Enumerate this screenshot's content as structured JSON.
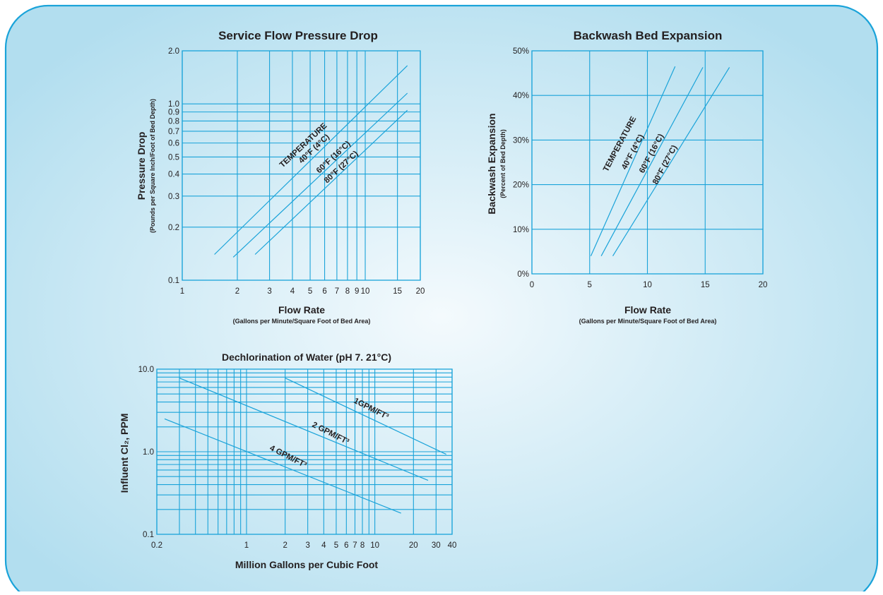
{
  "colors": {
    "panel_border": "#1aa3d9",
    "panel_center": "#f4fafd",
    "panel_edge": "#b2deef",
    "grid": "#1aa3d9",
    "text": "#231f20"
  },
  "chart_data": [
    {
      "type": "line",
      "title": "Service Flow Pressure Drop",
      "xlabel": "Flow Rate",
      "xlabel_sub": "(Gallons per Minute/Square Foot of Bed Area)",
      "ylabel": "Pressure Drop",
      "ylabel_sub": "(Pounds per Square Inch/Foot of Bed Depth)",
      "xscale": "log",
      "yscale": "log",
      "xlim": [
        1,
        20
      ],
      "ylim": [
        0.1,
        2.0
      ],
      "x_ticks": [
        {
          "v": 1,
          "label": "1"
        },
        {
          "v": 2,
          "label": "2"
        },
        {
          "v": 3,
          "label": "3"
        },
        {
          "v": 4,
          "label": "4"
        },
        {
          "v": 5,
          "label": "5"
        },
        {
          "v": 6,
          "label": "6"
        },
        {
          "v": 7,
          "label": "7"
        },
        {
          "v": 8,
          "label": "8"
        },
        {
          "v": 9,
          "label": "9"
        },
        {
          "v": 10,
          "label": "10"
        },
        {
          "v": 15,
          "label": "15"
        },
        {
          "v": 20,
          "label": "20"
        }
      ],
      "y_ticks": [
        {
          "v": 0.1,
          "label": "0.1"
        },
        {
          "v": 0.2,
          "label": "0.2"
        },
        {
          "v": 0.3,
          "label": "0.3"
        },
        {
          "v": 0.4,
          "label": "0.4"
        },
        {
          "v": 0.5,
          "label": "0.5"
        },
        {
          "v": 0.6,
          "label": "0.6"
        },
        {
          "v": 0.7,
          "label": "0.7"
        },
        {
          "v": 0.8,
          "label": "0.8"
        },
        {
          "v": 0.9,
          "label": "0.9"
        },
        {
          "v": 1.0,
          "label": "1.0"
        },
        {
          "v": 2.0,
          "label": "2.0"
        }
      ],
      "grid": true,
      "annotation": "TEMPERATURE",
      "series": [
        {
          "name": "40°F (4°C)",
          "x": [
            1.5,
            17
          ],
          "y": [
            0.14,
            1.65
          ]
        },
        {
          "name": "60°F (16°C)",
          "x": [
            1.9,
            17
          ],
          "y": [
            0.135,
            1.15
          ]
        },
        {
          "name": "80°F (27°C)",
          "x": [
            2.5,
            17
          ],
          "y": [
            0.14,
            0.92
          ]
        }
      ]
    },
    {
      "type": "line",
      "title": "Backwash Bed Expansion",
      "xlabel": "Flow Rate",
      "xlabel_sub": "(Gallons per Minute/Square Foot of Bed Area)",
      "ylabel": "Backwash Expansion",
      "ylabel_sub": "(Percent of Bed Depth)",
      "xscale": "linear",
      "yscale": "linear",
      "xlim": [
        0,
        20
      ],
      "ylim": [
        0,
        50
      ],
      "x_ticks": [
        {
          "v": 0,
          "label": "0"
        },
        {
          "v": 5,
          "label": "5"
        },
        {
          "v": 10,
          "label": "10"
        },
        {
          "v": 15,
          "label": "15"
        },
        {
          "v": 20,
          "label": "20"
        }
      ],
      "y_ticks": [
        {
          "v": 0,
          "label": "0%"
        },
        {
          "v": 10,
          "label": "10%"
        },
        {
          "v": 20,
          "label": "20%"
        },
        {
          "v": 30,
          "label": "30%"
        },
        {
          "v": 40,
          "label": "40%"
        },
        {
          "v": 50,
          "label": "50%"
        }
      ],
      "grid": true,
      "annotation": "TEMPERATURE",
      "series": [
        {
          "name": "40°F (4°C)",
          "x": [
            5.1,
            12.4
          ],
          "y": [
            4,
            46.5
          ]
        },
        {
          "name": "60°F (16°C)",
          "x": [
            6.0,
            14.8
          ],
          "y": [
            4,
            46.3
          ]
        },
        {
          "name": "80°F (27°C)",
          "x": [
            7.0,
            17.1
          ],
          "y": [
            4,
            46.3
          ]
        }
      ]
    },
    {
      "type": "line",
      "title": "Dechlorination of Water (pH 7. 21°C)",
      "xlabel": "Million Gallons per Cubic Foot",
      "ylabel": "Influent Cl₂, PPM",
      "xscale": "log",
      "yscale": "log",
      "xlim": [
        0.2,
        40
      ],
      "ylim": [
        0.1,
        10.0
      ],
      "x_ticks": [
        {
          "v": 0.2,
          "label": "0.2"
        },
        {
          "v": 1,
          "label": "1"
        },
        {
          "v": 2,
          "label": "2"
        },
        {
          "v": 3,
          "label": "3"
        },
        {
          "v": 4,
          "label": "4"
        },
        {
          "v": 5,
          "label": "5"
        },
        {
          "v": 6,
          "label": "6"
        },
        {
          "v": 7,
          "label": "7"
        },
        {
          "v": 8,
          "label": "8"
        },
        {
          "v": 10,
          "label": "10"
        },
        {
          "v": 20,
          "label": "20"
        },
        {
          "v": 30,
          "label": "30"
        },
        {
          "v": 40,
          "label": "40"
        }
      ],
      "y_ticks": [
        {
          "v": 0.1,
          "label": "0.1"
        },
        {
          "v": 1.0,
          "label": "1.0"
        },
        {
          "v": 10.0,
          "label": "10.0"
        }
      ],
      "grid": true,
      "series": [
        {
          "name": "1GPM/FT³",
          "x": [
            2.0,
            36
          ],
          "y": [
            7.8,
            0.93
          ]
        },
        {
          "name": "2 GPM/FT³",
          "x": [
            0.3,
            26
          ],
          "y": [
            7.8,
            0.45
          ]
        },
        {
          "name": "4 GPM/FT³",
          "x": [
            0.23,
            16
          ],
          "y": [
            2.5,
            0.18
          ]
        }
      ]
    }
  ]
}
